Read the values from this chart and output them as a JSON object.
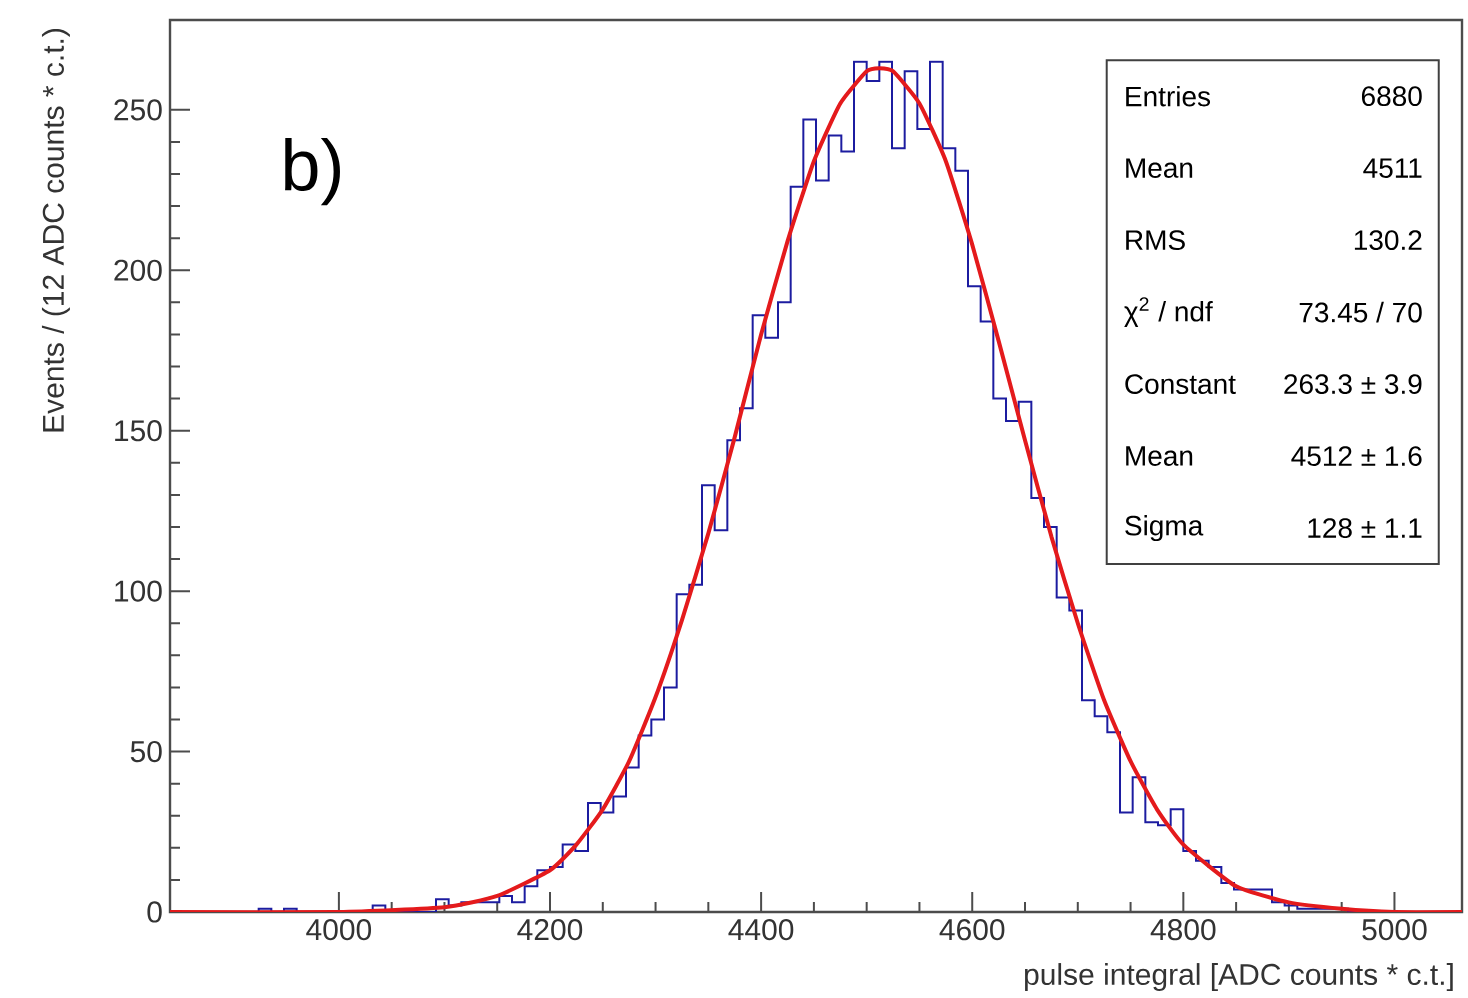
{
  "chart_data": {
    "type": "histogram",
    "xlabel": "pulse integral [ADC counts * c.t.]",
    "ylabel": "Events / (12 ADC counts * c.t.)",
    "annotations": [
      "b)",
      "Entries",
      "6880",
      "Mean",
      "4511",
      "RMS",
      "130.2",
      "χ$^{2}$ / ndf",
      "73.45 / 70",
      "Constant",
      "263.3 ± 3.9",
      "Mean",
      "4512 ± 1.6",
      "Sigma",
      "128 ± 1.1"
    ],
    "xlim": [
      3840,
      5064
    ],
    "ylim": [
      0,
      278
    ],
    "xticks": [
      4000,
      4200,
      4400,
      4600,
      4800,
      5000
    ],
    "yticks": [
      0,
      50,
      100,
      150,
      200,
      250
    ],
    "bins": [
      3840,
      3852,
      3864,
      3876,
      3888,
      3900,
      3912,
      3924,
      3936,
      3948,
      3960,
      3972,
      3984,
      3996,
      4008,
      4020,
      4032,
      4044,
      4056,
      4068,
      4080,
      4092,
      4104,
      4116,
      4128,
      4140,
      4152,
      4164,
      4176,
      4188,
      4200,
      4212,
      4224,
      4236,
      4248,
      4260,
      4272,
      4284,
      4296,
      4308,
      4320,
      4332,
      4344,
      4356,
      4368,
      4380,
      4392,
      4404,
      4416,
      4428,
      4440,
      4452,
      4464,
      4476,
      4488,
      4500,
      4512,
      4524,
      4536,
      4548,
      4560,
      4572,
      4584,
      4596,
      4608,
      4620,
      4632,
      4644,
      4656,
      4668,
      4680,
      4692,
      4704,
      4716,
      4728,
      4740,
      4752,
      4764,
      4776,
      4788,
      4800,
      4812,
      4824,
      4836,
      4848,
      4860,
      4872,
      4884,
      4896,
      4908,
      4920,
      4932,
      4944,
      4956,
      4968,
      4980,
      4992,
      5004,
      5016,
      5028,
      5040,
      5052,
      5064
    ],
    "series": [
      {
        "type": "histogram",
        "color": "#1c1ca0",
        "values": [
          0,
          0,
          0,
          0,
          0,
          0,
          0,
          1,
          0,
          1,
          0,
          0,
          0,
          0,
          0,
          0,
          2,
          0,
          0,
          0,
          0,
          4,
          2,
          3,
          3,
          3,
          5,
          3,
          8,
          13,
          14,
          21,
          19,
          34,
          31,
          36,
          45,
          55,
          60,
          70,
          99,
          102,
          133,
          119,
          147,
          157,
          186,
          179,
          190,
          226,
          247,
          228,
          242,
          237,
          265,
          259,
          265,
          238,
          262,
          244,
          265,
          238,
          231,
          195,
          184,
          160,
          153,
          159,
          129,
          120,
          98,
          94,
          66,
          61,
          56,
          31,
          42,
          28,
          27,
          32,
          19,
          16,
          14,
          9,
          7,
          7,
          7,
          3,
          2,
          1,
          1,
          1,
          1,
          0,
          0,
          0,
          0,
          0,
          0,
          0,
          0,
          0
        ]
      },
      {
        "type": "line",
        "color": "#e41a1c",
        "x": [
          3840,
          4000,
          4100,
          4150,
          4200,
          4225,
          4250,
          4275,
          4300,
          4325,
          4350,
          4375,
          4400,
          4425,
          4450,
          4475,
          4500,
          4512,
          4525,
          4550,
          4575,
          4600,
          4625,
          4650,
          4675,
          4700,
          4725,
          4750,
          4775,
          4800,
          4850,
          4900,
          4950,
          5000,
          5064
        ],
        "values": [
          0,
          0,
          1.5,
          5,
          13,
          21,
          32,
          47,
          67,
          91,
          118,
          148,
          180,
          209,
          234,
          252,
          262,
          263,
          262,
          252,
          234,
          208,
          178,
          147,
          117,
          90,
          66,
          47,
          32,
          21,
          8,
          3,
          1,
          0,
          0
        ]
      }
    ]
  }
}
